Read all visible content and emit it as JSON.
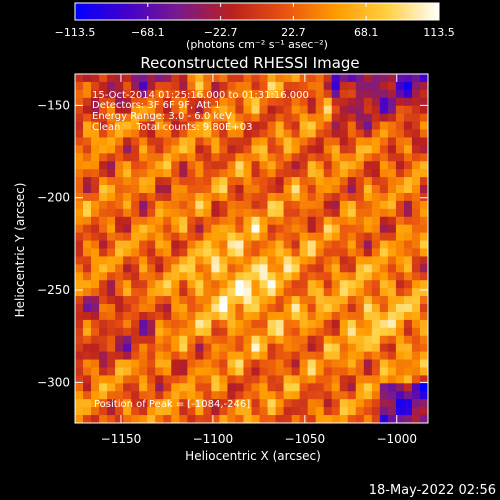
{
  "chart_data": {
    "type": "heatmap",
    "title": "Reconstructed RHESSI Image",
    "xlabel": "Heliocentric X (arcsec)",
    "ylabel": "Heliocentric Y (arcsec)",
    "xlim": [
      -1175,
      -983
    ],
    "ylim": [
      -322,
      -133
    ],
    "x_ticks": [
      -1150,
      -1100,
      -1050,
      -1000
    ],
    "x_tick_labels": [
      "−1150",
      "−1100",
      "−1050",
      "−1000"
    ],
    "y_ticks": [
      -300,
      -250,
      -200,
      -150
    ],
    "y_tick_labels": [
      "−300",
      "−250",
      "−200",
      "−150"
    ],
    "colorbar": {
      "range": [
        -113.5,
        113.5
      ],
      "ticks": [
        -113.5,
        -68.1,
        -22.7,
        22.7,
        68.1,
        113.5
      ],
      "tick_labels": [
        "−113.5",
        "−68.1",
        "−22.7",
        "22.7",
        "68.1",
        "113.5"
      ],
      "unit_label": "(photons cm⁻² s⁻¹ asec⁻²)",
      "stops": [
        "#0000ff",
        "#4400cc",
        "#7a1a8a",
        "#b82020",
        "#e85010",
        "#ff9a00",
        "#ffd040",
        "#ffffff"
      ]
    },
    "annotations": [
      "15-Oct-2014 01:25:16.000 to 01:31:16.000",
      "Detectors: 3F 6F 9F, Att 1",
      "Energy Range: 3.0 - 6.0 keV",
      "Clean     Total counts: 9.80E+03"
    ],
    "peak_label": "Position of Peak = [-1084,-246]",
    "peak": [
      -1084,
      -246
    ],
    "timestamp": "18-May-2022 02:56"
  }
}
